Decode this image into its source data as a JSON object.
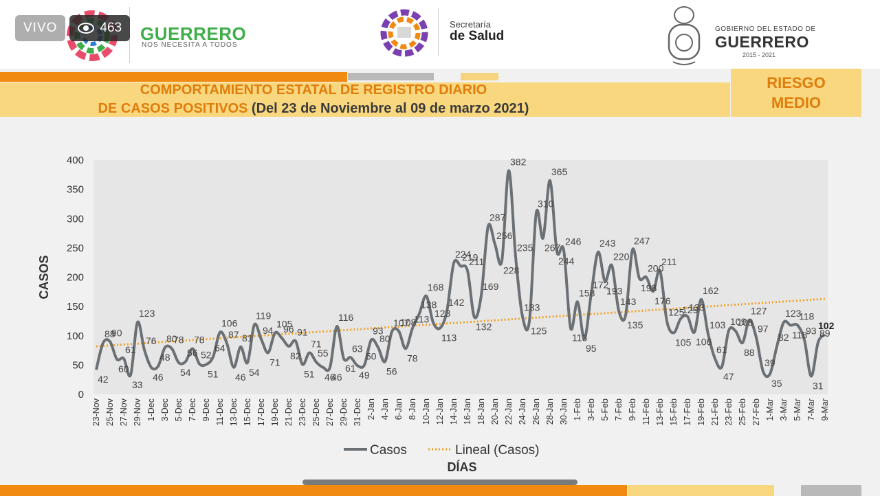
{
  "live": {
    "label": "VIVO",
    "views": "463"
  },
  "header": {
    "brand_title": "GUERRERO",
    "brand_subtitle": "NOS NECESITA A TODOS",
    "salud_line1": "Secretaría",
    "salud_line2": "de Salud",
    "gob_line1": "GOBIERNO DEL ESTADO DE",
    "gob_line2": "GUERRERO",
    "gob_line3": "2015 - 2021"
  },
  "banner": {
    "title_line1": "COMPORTAMIENTO ESTATAL DE REGISTRO DIARIO",
    "title_line2_a": "DE CASOS POSITIVOS",
    "title_line2_b": " (Del 23 de Noviembre al 09 de marzo 2021)",
    "risk_line1": "RIESGO",
    "risk_line2": "MEDIO"
  },
  "colors": {
    "orange": "#f08a10",
    "yellow": "#f8d77e",
    "series": "#6b7075",
    "trend": "#f0a020"
  },
  "chart_data": {
    "type": "line",
    "ylabel": "CASOS",
    "xlabel": "DÍAS",
    "ylim": [
      0,
      400
    ],
    "yticks": [
      0,
      50,
      100,
      150,
      200,
      250,
      300,
      350,
      400
    ],
    "x_tick_labels": [
      "23-Nov",
      "25-Nov",
      "27-Nov",
      "29-Nov",
      "1-Dec",
      "3-Dec",
      "5-Dec",
      "7-Dec",
      "9-Dec",
      "11-Dec",
      "13-Dec",
      "15-Dec",
      "17-Dec",
      "19-Dec",
      "21-Dec",
      "23-Dec",
      "25-Dec",
      "27-Dec",
      "29-Dec",
      "31-Dec",
      "2-Jan",
      "4-Jan",
      "6-Jan",
      "8-Jan",
      "10-Jan",
      "12-Jan",
      "14-Jan",
      "16-Jan",
      "18-Jan",
      "20-Jan",
      "22-Jan",
      "24-Jan",
      "26-Jan",
      "28-Jan",
      "30-Jan",
      "1-Feb",
      "3-Feb",
      "5-Feb",
      "7-Feb",
      "9-Feb",
      "11-Feb",
      "13-Feb",
      "15-Feb",
      "17-Feb",
      "19-Feb",
      "21-Feb",
      "23-Feb",
      "25-Feb",
      "27-Feb",
      "1-Mar",
      "3-Mar",
      "5-Mar",
      "7-Mar",
      "9-Mar"
    ],
    "series": [
      {
        "name": "Casos",
        "values": [
          42,
          88,
          90,
          60,
          61,
          33,
          123,
          76,
          46,
          48,
          80,
          78,
          54,
          56,
          78,
          52,
          51,
          64,
          106,
          87,
          46,
          81,
          54,
          119,
          94,
          71,
          105,
          96,
          82,
          91,
          51,
          71,
          55,
          46,
          46,
          116,
          61,
          63,
          49,
          50,
          93,
          80,
          56,
          107,
          108,
          78,
          113,
          138,
          168,
          123,
          113,
          142,
          224,
          219,
          211,
          132,
          169,
          287,
          256,
          228,
          382,
          235,
          133,
          125,
          310,
          267,
          365,
          244,
          246,
          113,
          158,
          95,
          172,
          243,
          193,
          220,
          143,
          135,
          247,
          198,
          200,
          176,
          211,
          125,
          105,
          129,
          133,
          106,
          162,
          103,
          61,
          47,
          109,
          108,
          88,
          127,
          97,
          39,
          35,
          82,
          123,
          118,
          118,
          93,
          31,
          89,
          102
        ]
      }
    ],
    "trend": {
      "name": "Lineal (Casos)",
      "start": 82,
      "end": 163
    },
    "legend": [
      "Casos",
      "Lineal (Casos)"
    ],
    "legend_position": "bottom",
    "grid": false
  }
}
